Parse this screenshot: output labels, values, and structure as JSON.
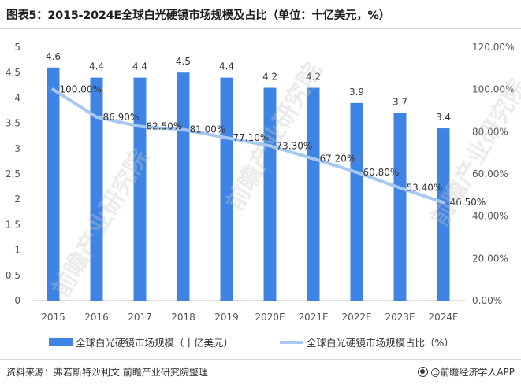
{
  "title": "图表5：2015-2024E全球白光硬镜市场规模及占比（单位：十亿美元，%）",
  "watermark": "前瞻产业研究院",
  "source_text": "资料来源：弗若斯特沙利文 前瞻产业研究院整理",
  "brand_text": "@前瞻经济学人APP",
  "colors": {
    "bar": "#3f84e5",
    "line": "#a7c9f1",
    "axis_text": "#555555",
    "label_text": "#333333"
  },
  "chart_data": {
    "type": "bar",
    "categories": [
      "2015",
      "2016",
      "2017",
      "2018",
      "2019",
      "2020E",
      "2021E",
      "2022E",
      "2023E",
      "2024E"
    ],
    "series": [
      {
        "name": "全球白光硬镜市场规模（十亿美元）",
        "type": "bar",
        "axis": "left",
        "values": [
          4.6,
          4.4,
          4.4,
          4.5,
          4.4,
          4.2,
          4.2,
          3.9,
          3.7,
          3.4
        ],
        "labels": [
          "4.6",
          "4.4",
          "4.4",
          "4.5",
          "4.4",
          "4.2",
          "4.2",
          "3.9",
          "3.7",
          "3.4"
        ]
      },
      {
        "name": "全球白光硬镜市场规模占比（%）",
        "type": "line",
        "axis": "right",
        "values": [
          100.0,
          86.9,
          82.5,
          81.0,
          77.1,
          73.3,
          67.2,
          60.8,
          53.4,
          46.5
        ],
        "labels": [
          "100.00%",
          "86.90%",
          "82.50%",
          "81.00%",
          "77.10%",
          "73.30%",
          "67.20%",
          "60.80%",
          "53.40%",
          "46.50%"
        ]
      }
    ],
    "y_left": {
      "ylim": [
        0,
        5
      ],
      "ticks": [
        "0",
        "0.5",
        "1",
        "1.5",
        "2",
        "2.5",
        "3",
        "3.5",
        "4",
        "4.5",
        "5"
      ]
    },
    "y_right": {
      "ylim": [
        0,
        120
      ],
      "ticks": [
        "0.00%",
        "20.00%",
        "40.00%",
        "60.00%",
        "80.00%",
        "100.00%",
        "120.00%"
      ]
    },
    "grid": false,
    "legend_position": "bottom"
  }
}
